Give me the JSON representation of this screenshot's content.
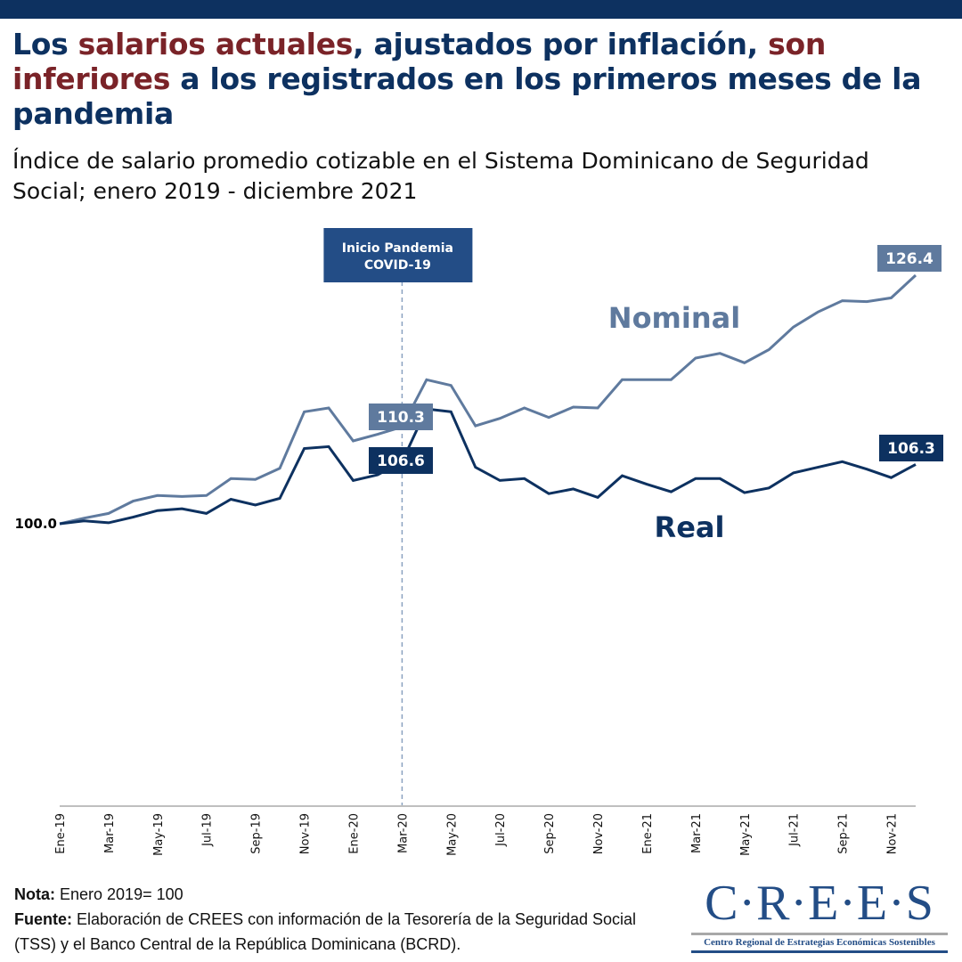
{
  "header": {
    "title_parts": [
      {
        "text": "Los ",
        "highlight": false
      },
      {
        "text": "salarios actuales",
        "highlight": true
      },
      {
        "text": ", ajustados por inflación, ",
        "highlight": false
      },
      {
        "text": "son inferiores",
        "highlight": true
      },
      {
        "text": " a los registrados en los primeros meses de la pandemia",
        "highlight": false
      }
    ],
    "subtitle": "Índice de salario promedio cotizable en el Sistema Dominicano de Seguridad Social; enero 2019 - diciembre 2021"
  },
  "colors": {
    "title_dark": "#0d3160",
    "title_highlight": "#7a2328",
    "nominal": "#5f7a9e",
    "real": "#0d3160",
    "annotation_box": "#234d86",
    "axis": "#bfbfbf"
  },
  "chart_data": {
    "type": "line",
    "title": "Los salarios actuales, ajustados por inflación, son inferiores a los registrados en los primeros meses de la pandemia",
    "subtitle": "Índice de salario promedio cotizable en el Sistema Dominicano de Seguridad Social; enero 2019 - diciembre 2021",
    "xlabel": "",
    "ylabel": "",
    "ylim": [
      70,
      131
    ],
    "grid": false,
    "x": [
      "Ene-19",
      "Feb-19",
      "Mar-19",
      "Abr-19",
      "May-19",
      "Jun-19",
      "Jul-19",
      "Ago-19",
      "Sep-19",
      "Oct-19",
      "Nov-19",
      "Dic-19",
      "Ene-20",
      "Feb-20",
      "Mar-20",
      "Abr-20",
      "May-20",
      "Jun-20",
      "Jul-20",
      "Ago-20",
      "Sep-20",
      "Oct-20",
      "Nov-20",
      "Dic-20",
      "Ene-21",
      "Feb-21",
      "Mar-21",
      "Abr-21",
      "May-21",
      "Jun-21",
      "Jul-21",
      "Ago-21",
      "Sep-21",
      "Oct-21",
      "Nov-21",
      "Dic-21"
    ],
    "x_tick_labels": [
      "Ene-19",
      "Mar-19",
      "May-19",
      "Jul-19",
      "Sep-19",
      "Nov-19",
      "Ene-20",
      "Mar-20",
      "May-20",
      "Jul-20",
      "Sep-20",
      "Nov-20",
      "Ene-21",
      "Mar-21",
      "May-21",
      "Jul-21",
      "Sep-21",
      "Nov-21"
    ],
    "series": [
      {
        "name": "Nominal",
        "values": [
          100.0,
          100.6,
          101.1,
          102.4,
          103.0,
          102.9,
          103.0,
          104.8,
          104.7,
          105.9,
          111.9,
          112.3,
          108.8,
          109.5,
          110.3,
          115.3,
          114.7,
          110.4,
          111.2,
          112.3,
          111.3,
          112.4,
          112.3,
          115.3,
          115.3,
          115.3,
          117.6,
          118.1,
          117.1,
          118.5,
          120.9,
          122.5,
          123.7,
          123.6,
          124.0,
          126.4
        ]
      },
      {
        "name": "Real",
        "values": [
          100.0,
          100.3,
          100.1,
          100.7,
          101.4,
          101.6,
          101.1,
          102.6,
          102.0,
          102.7,
          108.0,
          108.2,
          104.6,
          105.2,
          106.6,
          112.2,
          111.9,
          106.0,
          104.6,
          104.8,
          103.2,
          103.7,
          102.8,
          105.1,
          104.2,
          103.4,
          104.8,
          104.8,
          103.3,
          103.8,
          105.4,
          106.0,
          106.6,
          105.8,
          104.9,
          106.3
        ]
      }
    ],
    "data_labels": [
      {
        "series": "Nominal",
        "x": "Mar-20",
        "text": "110.3"
      },
      {
        "series": "Real",
        "x": "Mar-20",
        "text": "106.6"
      },
      {
        "series": "Nominal",
        "x": "Dic-21",
        "text": "126.4"
      },
      {
        "series": "Real",
        "x": "Dic-21",
        "text": "106.3"
      },
      {
        "series": "Both",
        "x": "Ene-19",
        "text": "100.0"
      }
    ],
    "series_labels": {
      "nominal": "Nominal",
      "real": "Real"
    },
    "annotation": {
      "x": "Mar-20",
      "line1": "Inicio Pandemia",
      "line2": "COVID-19",
      "style": "dashed vertical line"
    },
    "legend": "inline labels"
  },
  "footer": {
    "note_label": "Nota:",
    "note_text": " Enero 2019= 100",
    "source_label": "Fuente:",
    "source_text": " Elaboración de CREES con información de la Tesorería de la Seguridad Social (TSS) y el Banco Central de la República Dominicana (BCRD)."
  },
  "logo": {
    "name": "C·R·E·E·S",
    "tagline": "Centro Regional de Estrategias Económicas Sostenibles"
  }
}
